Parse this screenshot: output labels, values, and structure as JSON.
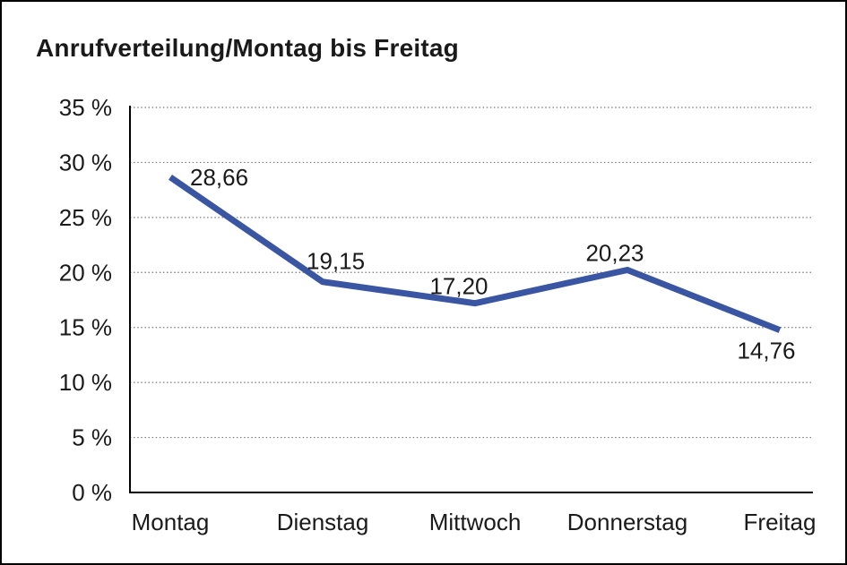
{
  "chart_data": {
    "type": "line",
    "title": "Anrufverteilung/Montag bis Freitag",
    "categories": [
      "Montag",
      "Dienstag",
      "Mittwoch",
      "Donnerstag",
      "Freitag"
    ],
    "values": [
      28.66,
      19.15,
      17.2,
      20.23,
      14.76
    ],
    "point_labels": [
      "28,66",
      "19,15",
      "17,20",
      "20,23",
      "14,76"
    ],
    "xlabel": "",
    "ylabel": "",
    "ylim": [
      0,
      35
    ],
    "y_tick_step": 5,
    "y_tick_labels": [
      "0 %",
      "5 %",
      "10 %",
      "15 %",
      "20 %",
      "25 %",
      "30 %",
      "35 %"
    ],
    "grid": "horizontal-dotted",
    "legend": "none",
    "colors": {
      "line": "#3A56A2",
      "text": "#1A1A1A",
      "axis": "#000000",
      "gridline": "#7A7A7A",
      "background": "#FFFFFF",
      "border": "#000000"
    }
  }
}
